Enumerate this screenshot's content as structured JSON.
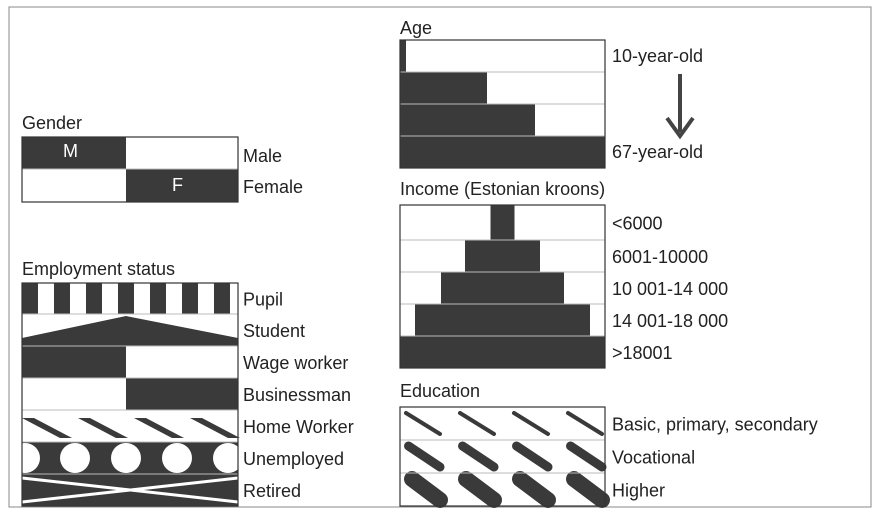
{
  "gender": {
    "title": "Gender",
    "male_mark": "M",
    "female_mark": "F",
    "labels": [
      "Male",
      "Female"
    ]
  },
  "employment": {
    "title": "Employment status",
    "labels": [
      "Pupil",
      "Student",
      "Wage worker",
      "Businessman",
      "Home Worker",
      "Unemployed",
      "Retired"
    ]
  },
  "age": {
    "title": "Age",
    "labels": [
      "10-year-old",
      "67-year-old"
    ]
  },
  "income": {
    "title": "Income (Estonian kroons)",
    "labels": [
      "<6000",
      "6001-10000",
      "10 001-14 000",
      "14 001-18 000",
      ">18001"
    ]
  },
  "education": {
    "title": "Education",
    "labels": [
      "Basic, primary, secondary",
      "Vocational",
      "Higher"
    ]
  }
}
